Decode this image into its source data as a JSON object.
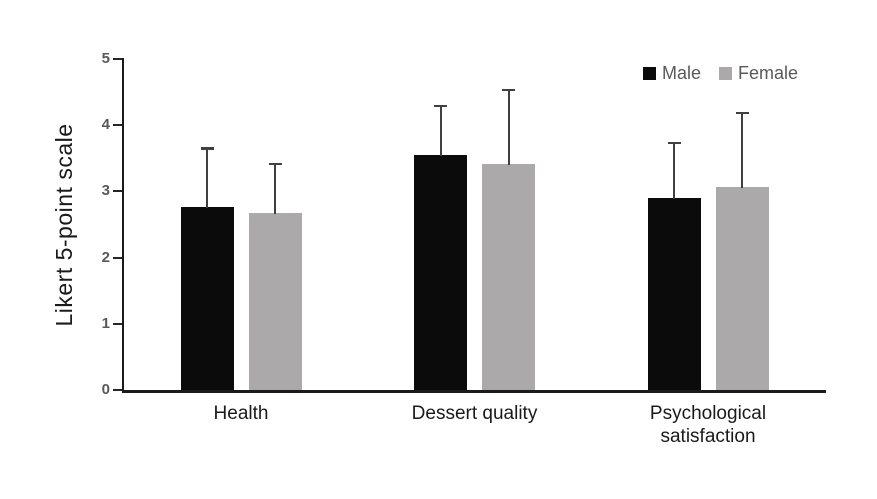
{
  "chart_data": {
    "type": "bar",
    "title": "",
    "xlabel": "",
    "ylabel": "Likert 5-point scale",
    "categories": [
      "Health",
      "Dessert quality",
      "Psychological satisfaction"
    ],
    "series": [
      {
        "name": "Male",
        "color": "#0b0b0b",
        "values": [
          2.77,
          3.55,
          2.9
        ],
        "errors_plus": [
          0.9,
          0.76,
          0.85
        ]
      },
      {
        "name": "Female",
        "color": "#aba9a9",
        "values": [
          2.67,
          3.42,
          3.06
        ],
        "errors_plus": [
          0.76,
          1.13,
          1.14
        ]
      }
    ],
    "ylim": [
      0,
      5
    ],
    "yticks": [
      0,
      1,
      2,
      3,
      4,
      5
    ],
    "grid": false,
    "legend_position": "top-right",
    "error_bar_color": "#404040",
    "axis_color": "#1a1a1a",
    "tick_label_color": "#595959",
    "legend_text_color": "#595959",
    "background_color": "#ffffff"
  }
}
